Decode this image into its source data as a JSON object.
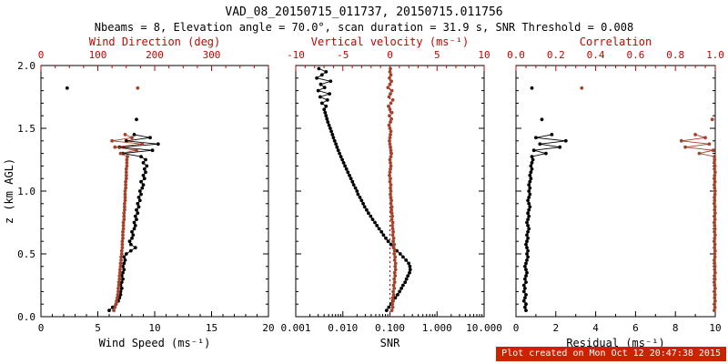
{
  "header": {
    "title": "VAD_08_20150715_011737, 20150715.011756",
    "subtitle": "Nbeams = 8, Elevation angle = 70.0°, scan duration = 31.9 s, SNR Threshold = 0.008"
  },
  "footer": {
    "stamp": "Plot created on Mon Oct 12 20:47:38 2015"
  },
  "colors": {
    "black": "#000000",
    "axis_label_red": "#cc0000",
    "series_red": "#a5422c",
    "stamp_bg": "#cc2200",
    "stamp_text": "#ffffff"
  },
  "heights": {
    "main": [
      0.05,
      0.075,
      0.1,
      0.125,
      0.15,
      0.175,
      0.2,
      0.225,
      0.25,
      0.275,
      0.3,
      0.325,
      0.35,
      0.375,
      0.4,
      0.425,
      0.45,
      0.475,
      0.5,
      0.525,
      0.55,
      0.575,
      0.6,
      0.625,
      0.65,
      0.675,
      0.7,
      0.725,
      0.75,
      0.775,
      0.8,
      0.825,
      0.85,
      0.875,
      0.9,
      0.925,
      0.95,
      0.975,
      1.0,
      1.025,
      1.05,
      1.075,
      1.1,
      1.125,
      1.15,
      1.175,
      1.2,
      1.225,
      1.25,
      1.275,
      1.3,
      1.325,
      1.35,
      1.375,
      1.4,
      1.425,
      1.45
    ],
    "ext": [
      0.05,
      0.075,
      0.1,
      0.125,
      0.15,
      0.175,
      0.2,
      0.225,
      0.25,
      0.275,
      0.3,
      0.325,
      0.35,
      0.375,
      0.4,
      0.425,
      0.45,
      0.475,
      0.5,
      0.525,
      0.55,
      0.575,
      0.6,
      0.625,
      0.65,
      0.675,
      0.7,
      0.725,
      0.75,
      0.775,
      0.8,
      0.825,
      0.85,
      0.875,
      0.9,
      0.925,
      0.95,
      0.975,
      1.0,
      1.025,
      1.05,
      1.075,
      1.1,
      1.125,
      1.15,
      1.175,
      1.2,
      1.225,
      1.25,
      1.275,
      1.3,
      1.325,
      1.35,
      1.375,
      1.4,
      1.425,
      1.45,
      1.475,
      1.5,
      1.525,
      1.55,
      1.575,
      1.6,
      1.625,
      1.65,
      1.675,
      1.7,
      1.725,
      1.75,
      1.775,
      1.8,
      1.825,
      1.85,
      1.875,
      1.9,
      1.925,
      1.95,
      1.975
    ]
  },
  "chart_data": [
    {
      "type": "scatter",
      "panel": "wind-profile",
      "y_axis": {
        "label": "z (km AGL)",
        "min": 0,
        "max": 2,
        "tick_values": [
          0,
          0.5,
          1,
          1.5,
          2
        ],
        "tick_labels": [
          "0.0",
          "0.5",
          "1.0",
          "1.5",
          "2.0"
        ],
        "minor_step": 0.1,
        "show_labels": true
      },
      "x_bottom": {
        "label": "Wind Speed (ms⁻¹)",
        "min": 0,
        "max": 20,
        "tick_values": [
          0,
          5,
          10,
          15,
          20
        ],
        "tick_labels": [
          "0",
          "5",
          "10",
          "15",
          "20"
        ],
        "minor_step": 1
      },
      "x_top": {
        "label": "Wind Direction (deg)",
        "min": 0,
        "max": 400,
        "tick_values": [
          0,
          100,
          200,
          300
        ],
        "tick_labels": [
          "0",
          "100",
          "200",
          "300"
        ],
        "minor_step": 25,
        "color": "red"
      },
      "series": [
        {
          "name": "wind-speed",
          "axis": "bottom",
          "color": "black",
          "connect": true,
          "z": "main",
          "values": [
            6.0,
            6.3,
            6.6,
            6.8,
            6.9,
            7.0,
            7.0,
            7.1,
            7.0,
            7.1,
            7.2,
            7.1,
            7.2,
            7.3,
            7.2,
            7.3,
            7.4,
            7.3,
            7.5,
            7.9,
            8.3,
            7.9,
            7.8,
            8.0,
            8.1,
            8.0,
            8.2,
            8.3,
            8.2,
            8.4,
            8.3,
            8.5,
            8.4,
            8.6,
            8.5,
            8.7,
            8.6,
            8.8,
            8.7,
            8.9,
            9.0,
            8.8,
            9.1,
            9.0,
            9.2,
            9.1,
            9.3,
            9.0,
            9.2,
            8.8,
            7.2,
            9.8,
            6.9,
            10.3,
            7.5,
            9.6,
            8.2
          ]
        },
        {
          "name": "wind-speed-outliers",
          "axis": "bottom",
          "color": "black",
          "connect": false,
          "z": [
            1.57,
            1.82
          ],
          "values": [
            8.4,
            2.3
          ]
        },
        {
          "name": "wind-direction",
          "axis": "top",
          "color": "red",
          "connect": true,
          "z": "main",
          "values": [
            128,
            130,
            132,
            133,
            134,
            135,
            136,
            136,
            137,
            137,
            138,
            138,
            139,
            139,
            140,
            140,
            141,
            141,
            142,
            142,
            143,
            143,
            143,
            144,
            144,
            144,
            145,
            145,
            145,
            146,
            146,
            146,
            147,
            147,
            147,
            148,
            148,
            148,
            148,
            149,
            149,
            149,
            150,
            150,
            150,
            150,
            151,
            151,
            151,
            152,
            140,
            168,
            130,
            178,
            125,
            160,
            148
          ]
        },
        {
          "name": "wind-direction-outliers",
          "axis": "top",
          "color": "red",
          "connect": false,
          "z": [
            1.82
          ],
          "values": [
            170
          ]
        }
      ]
    },
    {
      "type": "scatter",
      "panel": "snr-profile",
      "y_axis": {
        "label": "",
        "min": 0,
        "max": 2,
        "tick_values": [
          0,
          0.5,
          1,
          1.5,
          2
        ],
        "tick_labels": [
          "0.0",
          "0.5",
          "1.0",
          "1.5",
          "2.0"
        ],
        "minor_step": 0.1,
        "show_labels": false
      },
      "x_bottom": {
        "label": "SNR",
        "log": true,
        "min": 0.001,
        "max": 10,
        "tick_values": [
          0.001,
          0.01,
          0.1,
          1,
          10
        ],
        "tick_labels": [
          "0.001",
          "0.010",
          "0.100",
          "1.000",
          "10.000"
        ]
      },
      "x_top": {
        "label": "Vertical velocity (ms⁻¹)",
        "min": -10,
        "max": 10,
        "tick_values": [
          -10,
          -5,
          0,
          5,
          10
        ],
        "tick_labels": [
          "-10",
          "-5",
          "0",
          "5",
          "10"
        ],
        "minor_step": 1,
        "color": "red"
      },
      "refline": {
        "axis": "top",
        "value": 0,
        "style": "dotted",
        "color": "red"
      },
      "series": [
        {
          "name": "snr",
          "axis": "bottom",
          "color": "black",
          "connect": true,
          "z": "ext",
          "values": [
            0.085,
            0.095,
            0.105,
            0.115,
            0.13,
            0.145,
            0.16,
            0.175,
            0.19,
            0.21,
            0.225,
            0.24,
            0.26,
            0.27,
            0.265,
            0.25,
            0.22,
            0.19,
            0.165,
            0.14,
            0.12,
            0.105,
            0.092,
            0.082,
            0.073,
            0.066,
            0.059,
            0.053,
            0.048,
            0.043,
            0.039,
            0.035,
            0.032,
            0.029,
            0.027,
            0.025,
            0.023,
            0.021,
            0.02,
            0.0185,
            0.017,
            0.016,
            0.0148,
            0.0138,
            0.0128,
            0.0119,
            0.0111,
            0.0104,
            0.0097,
            0.0091,
            0.0085,
            0.008,
            0.0075,
            0.0071,
            0.0067,
            0.0063,
            0.006,
            0.0057,
            0.0054,
            0.0051,
            0.0048,
            0.0046,
            0.0044,
            0.0042,
            0.004,
            0.0044,
            0.0036,
            0.0047,
            0.0033,
            0.0052,
            0.003,
            0.0041,
            0.0034,
            0.0055,
            0.0028,
            0.0036,
            0.0044,
            0.0031
          ]
        },
        {
          "name": "vertical-velocity",
          "axis": "top",
          "color": "red",
          "connect": false,
          "z": "ext",
          "values": [
            0.2,
            0.3,
            0.25,
            0.35,
            0.3,
            0.4,
            0.35,
            0.45,
            0.4,
            0.5,
            0.45,
            0.55,
            0.5,
            0.6,
            0.55,
            0.6,
            0.5,
            0.55,
            0.45,
            0.5,
            0.4,
            0.45,
            0.35,
            0.4,
            0.3,
            0.35,
            0.3,
            0.25,
            0.3,
            0.2,
            0.25,
            0.2,
            0.15,
            0.2,
            0.1,
            0.15,
            0.1,
            0.05,
            0.1,
            0.05,
            0.1,
            0.0,
            0.05,
            -0.05,
            0.0,
            0.05,
            0.1,
            0.05,
            0.0,
            0.1,
            0.15,
            0.1,
            0.05,
            0.0,
            -0.05,
            0.0,
            0.05,
            0.1,
            0.0,
            -0.1,
            0.05,
            0.15,
            -0.05,
            0.2,
            0.0,
            -0.15,
            0.1,
            0.3,
            -0.1,
            0.05,
            0.2,
            -0.2,
            0.0,
            0.15,
            -0.05,
            0.1,
            0.0,
            0.05
          ]
        }
      ]
    },
    {
      "type": "scatter",
      "panel": "residual-profile",
      "y_axis": {
        "label": "",
        "min": 0,
        "max": 2,
        "tick_values": [
          0,
          0.5,
          1,
          1.5,
          2
        ],
        "tick_labels": [
          "0.0",
          "0.5",
          "1.0",
          "1.5",
          "2.0"
        ],
        "minor_step": 0.1,
        "show_labels": false
      },
      "x_bottom": {
        "label": "Residual (ms⁻¹)",
        "min": 0,
        "max": 10,
        "tick_values": [
          0,
          2,
          4,
          6,
          8,
          10
        ],
        "tick_labels": [
          "0",
          "2",
          "4",
          "6",
          "8",
          "10"
        ],
        "minor_step": 1
      },
      "x_top": {
        "label": "Correlation",
        "min": 0,
        "max": 1,
        "tick_values": [
          0,
          0.2,
          0.4,
          0.6,
          0.8,
          1
        ],
        "tick_labels": [
          "0.0",
          "0.2",
          "0.4",
          "0.6",
          "0.8",
          "1.0"
        ],
        "minor_step": 0.05,
        "color": "red"
      },
      "series": [
        {
          "name": "residual",
          "axis": "bottom",
          "color": "black",
          "connect": true,
          "z": "main",
          "values": [
            0.5,
            0.45,
            0.5,
            0.4,
            0.45,
            0.5,
            0.4,
            0.45,
            0.4,
            0.5,
            0.45,
            0.5,
            0.55,
            0.5,
            0.45,
            0.5,
            0.55,
            0.6,
            0.55,
            0.6,
            0.55,
            0.5,
            0.55,
            0.6,
            0.55,
            0.6,
            0.65,
            0.6,
            0.55,
            0.6,
            0.65,
            0.6,
            0.65,
            0.7,
            0.65,
            0.6,
            0.65,
            0.7,
            0.65,
            0.7,
            0.65,
            0.7,
            0.75,
            0.7,
            0.75,
            0.8,
            0.75,
            0.8,
            0.85,
            0.8,
            1.5,
            0.9,
            2.2,
            1.2,
            2.5,
            1.0,
            1.8
          ]
        },
        {
          "name": "residual-outliers",
          "axis": "bottom",
          "color": "black",
          "connect": false,
          "z": [
            1.57,
            1.82
          ],
          "values": [
            1.3,
            0.8
          ]
        },
        {
          "name": "correlation",
          "axis": "top",
          "color": "red",
          "connect": true,
          "z": "main",
          "values": [
            0.995,
            0.998,
            0.996,
            0.999,
            0.997,
            0.998,
            0.996,
            0.999,
            0.997,
            0.995,
            0.998,
            0.996,
            0.999,
            0.997,
            0.998,
            0.996,
            0.995,
            0.998,
            0.997,
            0.999,
            0.996,
            0.998,
            0.995,
            0.997,
            0.999,
            0.996,
            0.998,
            0.997,
            0.995,
            0.998,
            0.996,
            0.999,
            0.997,
            0.998,
            0.995,
            0.997,
            0.996,
            0.998,
            0.999,
            0.997,
            0.995,
            0.998,
            0.996,
            0.997,
            0.999,
            0.996,
            0.998,
            0.995,
            0.997,
            0.996,
            0.92,
            0.99,
            0.85,
            0.97,
            0.83,
            0.95,
            0.9
          ]
        },
        {
          "name": "correlation-outliers",
          "axis": "top",
          "color": "red",
          "connect": false,
          "z": [
            1.57,
            1.82
          ],
          "values": [
            0.985,
            0.33
          ]
        }
      ]
    }
  ]
}
